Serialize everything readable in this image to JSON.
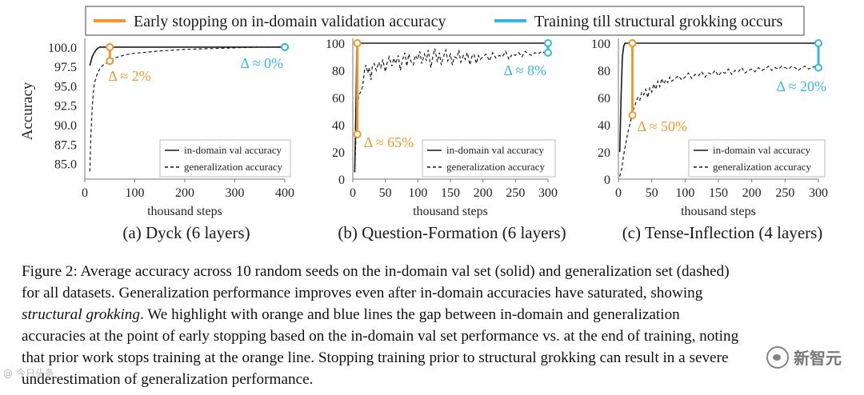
{
  "legend": {
    "orange_label": "Early stopping on in-domain validation accuracy",
    "blue_label": "Training till structural grokking occurs",
    "orange_color": "#f0982f",
    "blue_color": "#35b7e0"
  },
  "chart_data": [
    {
      "type": "line",
      "title": "(a) Dyck (6 layers)",
      "xlabel": "thousand steps",
      "ylabel": "Accuracy",
      "xlim": [
        0,
        400
      ],
      "ylim": [
        83,
        100.5
      ],
      "xticks": [
        0,
        100,
        200,
        300,
        400
      ],
      "yticks": [
        85.0,
        87.5,
        90.0,
        92.5,
        95.0,
        97.5,
        100.0
      ],
      "ytick_labels": [
        "85.0",
        "87.5",
        "90.0",
        "92.5",
        "95.0",
        "97.5",
        "100.0"
      ],
      "series": [
        {
          "name": "in-domain val accuracy",
          "style": "solid",
          "x": [
            10,
            15,
            20,
            25,
            30,
            40,
            50,
            100,
            200,
            300,
            400
          ],
          "y": [
            97.6,
            98.8,
            99.4,
            99.8,
            100,
            100,
            100,
            100,
            100,
            100,
            100
          ]
        },
        {
          "name": "generalization accuracy",
          "style": "dashed",
          "x": [
            10,
            12,
            15,
            18,
            20,
            25,
            30,
            35,
            40,
            45,
            50,
            60,
            80,
            100,
            150,
            200,
            250,
            300,
            350,
            400
          ],
          "y": [
            84.0,
            88.5,
            92.5,
            94.8,
            95.5,
            96.6,
            97.2,
            97.6,
            97.8,
            98.0,
            98.2,
            98.6,
            99.0,
            99.2,
            99.5,
            99.7,
            99.8,
            99.9,
            100,
            100
          ]
        }
      ],
      "gaps": [
        {
          "color": "orange",
          "x": 50,
          "y_top": 100.0,
          "y_bottom": 98.2,
          "label": "Δ ≈ 2%"
        },
        {
          "color": "blue",
          "x": 400,
          "y_top": 100.0,
          "y_bottom": 100.0,
          "label": "Δ ≈ 0%"
        }
      ],
      "legend_entries": [
        "in-domain val accuracy",
        "generalization accuracy"
      ]
    },
    {
      "type": "line",
      "title": "(b) Question-Formation (6 layers)",
      "xlabel": "thousand steps",
      "ylabel": "",
      "xlim": [
        0,
        300
      ],
      "ylim": [
        0,
        100
      ],
      "xticks": [
        0,
        50,
        100,
        150,
        200,
        250,
        300
      ],
      "yticks": [
        0,
        20,
        40,
        60,
        80,
        100
      ],
      "ytick_labels": [
        "0",
        "20",
        "40",
        "60",
        "80",
        "100"
      ],
      "series": [
        {
          "name": "in-domain val accuracy",
          "style": "solid",
          "x": [
            3,
            5,
            6,
            7,
            10,
            50,
            100,
            150,
            200,
            250,
            300
          ],
          "y": [
            5,
            60,
            95,
            100,
            100,
            100,
            100,
            100,
            100,
            100,
            100
          ]
        },
        {
          "name": "generalization accuracy",
          "style": "dashed",
          "x": [
            3,
            5,
            7,
            9,
            12,
            15,
            18,
            20,
            23,
            25,
            28,
            30,
            33,
            36,
            40,
            43,
            46,
            50,
            53,
            56,
            60,
            63,
            66,
            70,
            73,
            76,
            80,
            83,
            86,
            90,
            93,
            96,
            100,
            103,
            106,
            110,
            113,
            116,
            120,
            123,
            126,
            130,
            133,
            136,
            140,
            143,
            146,
            150,
            153,
            156,
            160,
            163,
            166,
            170,
            173,
            176,
            180,
            183,
            186,
            190,
            193,
            196,
            200,
            205,
            210,
            215,
            220,
            225,
            230,
            235,
            240,
            245,
            250,
            255,
            260,
            265,
            270,
            275,
            280,
            285,
            290,
            295,
            300
          ],
          "y": [
            5,
            33,
            45,
            62,
            64,
            68,
            80,
            84,
            78,
            82,
            73,
            83,
            85,
            80,
            86,
            82,
            88,
            79,
            86,
            90,
            83,
            89,
            85,
            91,
            80,
            87,
            93,
            83,
            92,
            86,
            84,
            91,
            88,
            94,
            85,
            92,
            87,
            95,
            82,
            90,
            96,
            86,
            93,
            84,
            91,
            95,
            87,
            92,
            84,
            90,
            89,
            95,
            86,
            91,
            88,
            93,
            84,
            90,
            92,
            85,
            91,
            88,
            90,
            92,
            87,
            93,
            89,
            91,
            90,
            94,
            88,
            92,
            91,
            93,
            90,
            94,
            92,
            91,
            93,
            92,
            94,
            93,
            93
          ]
        }
      ],
      "gaps": [
        {
          "color": "orange",
          "x": 7,
          "y_top": 100,
          "y_bottom": 33,
          "label": "Δ ≈ 65%"
        },
        {
          "color": "blue",
          "x": 300,
          "y_top": 100,
          "y_bottom": 93,
          "label": "Δ ≈ 8%"
        }
      ],
      "legend_entries": [
        "in-domain val accuracy",
        "generalization accuracy"
      ]
    },
    {
      "type": "line",
      "title": "(c) Tense-Inflection (4 layers)",
      "xlabel": "thousand steps",
      "ylabel": "",
      "xlim": [
        0,
        300
      ],
      "ylim": [
        0,
        100
      ],
      "xticks": [
        0,
        50,
        100,
        150,
        200,
        250,
        300
      ],
      "yticks": [
        0,
        20,
        40,
        60,
        80,
        100
      ],
      "ytick_labels": [
        "0",
        "20",
        "40",
        "60",
        "80",
        "100"
      ],
      "series": [
        {
          "name": "in-domain val accuracy",
          "style": "solid",
          "x": [
            2,
            4,
            6,
            8,
            10,
            15,
            20,
            50,
            100,
            150,
            200,
            250,
            300
          ],
          "y": [
            20,
            60,
            90,
            98,
            100,
            100,
            100,
            100,
            100,
            100,
            100,
            100,
            100
          ]
        },
        {
          "name": "generalization accuracy",
          "style": "dashed",
          "x": [
            2,
            5,
            8,
            11,
            14,
            17,
            20,
            23,
            26,
            29,
            32,
            35,
            38,
            41,
            44,
            47,
            50,
            53,
            56,
            59,
            62,
            65,
            68,
            71,
            74,
            77,
            80,
            85,
            90,
            95,
            100,
            105,
            110,
            115,
            120,
            125,
            130,
            135,
            140,
            145,
            150,
            155,
            160,
            165,
            170,
            175,
            180,
            185,
            190,
            195,
            200,
            205,
            210,
            215,
            220,
            225,
            230,
            235,
            240,
            245,
            250,
            255,
            260,
            265,
            270,
            275,
            280,
            285,
            290,
            295,
            300
          ],
          "y": [
            2,
            8,
            18,
            26,
            34,
            40,
            46,
            52,
            56,
            60,
            58,
            64,
            62,
            66,
            60,
            67,
            64,
            70,
            66,
            72,
            68,
            74,
            70,
            73,
            71,
            75,
            72,
            74,
            76,
            73,
            75,
            78,
            74,
            77,
            76,
            79,
            75,
            78,
            77,
            80,
            76,
            79,
            78,
            81,
            77,
            80,
            79,
            82,
            78,
            80,
            81,
            79,
            82,
            80,
            81,
            83,
            80,
            82,
            81,
            83,
            82,
            81,
            83,
            82,
            80,
            82,
            83,
            81,
            82,
            83,
            82
          ]
        }
      ],
      "gaps": [
        {
          "color": "orange",
          "x": 21,
          "y_top": 100,
          "y_bottom": 47,
          "label": "Δ ≈ 50%"
        },
        {
          "color": "blue",
          "x": 300,
          "y_top": 100,
          "y_bottom": 82,
          "label": "Δ ≈ 20%"
        }
      ],
      "legend_entries": [
        "in-domain val accuracy",
        "generalization accuracy"
      ]
    }
  ],
  "caption": {
    "line1": "Figure 2: Average accuracy across 10 random seeds on the in-domain val set (solid) and generalization set (dashed)",
    "line2": "for all datasets. Generalization performance improves even after in-domain accuracies have saturated, showing",
    "line3_em": "structural grokking",
    "line3_rest": ". We highlight with orange and blue lines the gap between in-domain and generalization",
    "line4": "accuracies at the point of early stopping based on the in-domain val set performance vs. at the end of training, noting",
    "line5": "that prior work stops training at the orange line. Stopping training prior to structural grokking can result in a severe",
    "line6": "underestimation of generalization performance."
  },
  "watermark": {
    "right_text": "新智元",
    "left_text": "@ 今日头条"
  }
}
